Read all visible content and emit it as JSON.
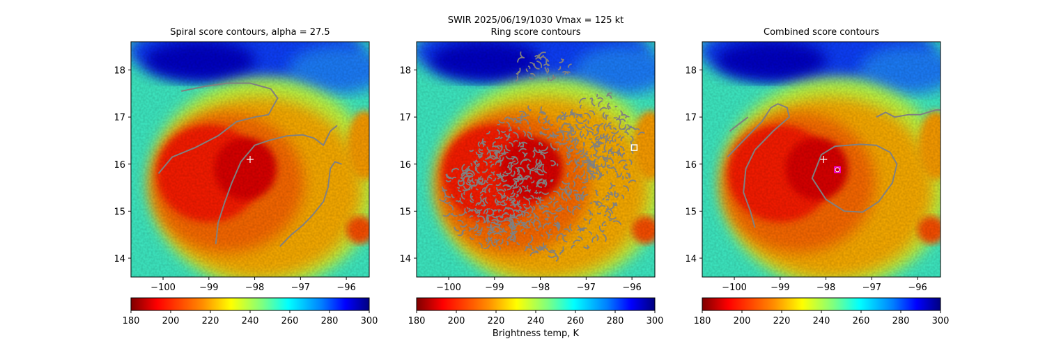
{
  "suptitle": "SWIR  2025/06/19/1030    Vmax = 125 kt",
  "colorbar_label": "Brightness temp, K",
  "colormap": [
    "#7f0000",
    "#ff0000",
    "#ff7f00",
    "#ffff00",
    "#7fff7f",
    "#00ffff",
    "#007fff",
    "#0000ff",
    "#00007f"
  ],
  "contour_color": "#808080",
  "chart_data": [
    {
      "type": "heatmap",
      "title": "Spiral score contours, alpha = 27.5",
      "xlim": [
        -100.7,
        -95.5
      ],
      "ylim": [
        13.6,
        18.6
      ],
      "xticks": [
        -100,
        -99,
        -98,
        -97,
        -96
      ],
      "yticks": [
        14,
        15,
        16,
        17,
        18
      ],
      "colorbar": {
        "min": 180,
        "max": 300,
        "ticks": [
          180,
          200,
          220,
          240,
          260,
          280,
          300
        ]
      },
      "markers": [
        {
          "shape": "plus",
          "color": "#ffffff",
          "x": -98.1,
          "y": 16.1
        }
      ],
      "contours": [
        [
          [
            -100.1,
            15.8
          ],
          [
            -99.8,
            16.15
          ],
          [
            -99.3,
            16.35
          ],
          [
            -98.8,
            16.6
          ],
          [
            -98.4,
            16.9
          ],
          [
            -98.0,
            17.0
          ],
          [
            -97.7,
            17.05
          ],
          [
            -97.5,
            17.4
          ],
          [
            -97.65,
            17.6
          ],
          [
            -98.1,
            17.72
          ],
          [
            -98.6,
            17.72
          ],
          [
            -99.1,
            17.65
          ],
          [
            -99.6,
            17.55
          ]
        ],
        [
          [
            -98.85,
            14.3
          ],
          [
            -98.8,
            14.75
          ],
          [
            -98.65,
            15.2
          ],
          [
            -98.5,
            15.6
          ],
          [
            -98.3,
            16.05
          ],
          [
            -98.0,
            16.4
          ],
          [
            -97.7,
            16.5
          ],
          [
            -97.3,
            16.6
          ],
          [
            -96.95,
            16.62
          ],
          [
            -96.7,
            16.55
          ],
          [
            -96.5,
            16.4
          ],
          [
            -96.35,
            16.7
          ],
          [
            -96.2,
            16.82
          ]
        ],
        [
          [
            -97.45,
            14.25
          ],
          [
            -97.2,
            14.5
          ],
          [
            -96.95,
            14.7
          ],
          [
            -96.75,
            14.9
          ],
          [
            -96.5,
            15.2
          ],
          [
            -96.4,
            15.5
          ],
          [
            -96.35,
            15.9
          ],
          [
            -96.25,
            16.05
          ],
          [
            -96.1,
            16.0
          ]
        ]
      ]
    },
    {
      "type": "heatmap",
      "title": "Ring score contours",
      "xlim": [
        -100.7,
        -95.5
      ],
      "ylim": [
        13.6,
        18.6
      ],
      "xticks": [
        -100,
        -99,
        -98,
        -97,
        -96
      ],
      "yticks": [
        14,
        15,
        16,
        17,
        18
      ],
      "colorbar": {
        "min": 180,
        "max": 300,
        "ticks": [
          180,
          200,
          220,
          240,
          260,
          280,
          300
        ]
      },
      "markers": [
        {
          "shape": "square",
          "color": "#ffffff",
          "x": -95.95,
          "y": 16.35
        }
      ],
      "contour_regions": [
        {
          "cx": -97.9,
          "cy": 15.6,
          "rx": 1.85,
          "ry": 1.6
        },
        {
          "cx": -98.9,
          "cy": 15.3,
          "rx": 1.2,
          "ry": 1.05
        },
        {
          "cx": -96.7,
          "cy": 16.6,
          "rx": 0.85,
          "ry": 0.9
        },
        {
          "cx": -98.0,
          "cy": 18.05,
          "rx": 0.7,
          "ry": 0.28
        }
      ]
    },
    {
      "type": "heatmap",
      "title": "Combined score contours",
      "xlim": [
        -100.7,
        -95.5
      ],
      "ylim": [
        13.6,
        18.6
      ],
      "xticks": [
        -100,
        -99,
        -98,
        -97,
        -96
      ],
      "yticks": [
        14,
        15,
        16,
        17,
        18
      ],
      "colorbar": {
        "min": 180,
        "max": 300,
        "ticks": [
          180,
          200,
          220,
          240,
          260,
          280,
          300
        ]
      },
      "markers": [
        {
          "shape": "plus",
          "color": "#ffffff",
          "x": -98.05,
          "y": 16.1
        },
        {
          "shape": "square",
          "color": "#ff00ff",
          "x": -97.75,
          "y": 15.88
        },
        {
          "shape": "circle",
          "color": "#ffffff",
          "x": -97.75,
          "y": 15.88
        }
      ],
      "contours": [
        [
          [
            -100.15,
            16.15
          ],
          [
            -99.7,
            16.6
          ],
          [
            -99.4,
            16.9
          ],
          [
            -99.2,
            17.2
          ],
          [
            -99.05,
            17.28
          ],
          [
            -98.85,
            17.2
          ],
          [
            -98.8,
            17.0
          ],
          [
            -99.15,
            16.7
          ],
          [
            -99.55,
            16.3
          ],
          [
            -99.75,
            15.9
          ],
          [
            -99.8,
            15.4
          ],
          [
            -99.65,
            15.0
          ],
          [
            -99.55,
            14.65
          ]
        ],
        [
          [
            -100.1,
            16.7
          ],
          [
            -99.9,
            16.85
          ],
          [
            -99.7,
            17.0
          ]
        ],
        [
          [
            -97.25,
            16.42
          ],
          [
            -96.9,
            16.4
          ],
          [
            -96.6,
            16.25
          ],
          [
            -96.45,
            16.0
          ],
          [
            -96.55,
            15.6
          ],
          [
            -96.85,
            15.2
          ],
          [
            -97.2,
            14.98
          ],
          [
            -97.6,
            15.0
          ],
          [
            -98.0,
            15.25
          ],
          [
            -98.3,
            15.7
          ],
          [
            -98.1,
            16.2
          ],
          [
            -97.8,
            16.38
          ],
          [
            -97.25,
            16.42
          ]
        ],
        [
          [
            -96.9,
            17.0
          ],
          [
            -96.7,
            17.1
          ],
          [
            -96.5,
            17.0
          ],
          [
            -96.2,
            17.05
          ],
          [
            -95.95,
            17.05
          ],
          [
            -95.6,
            17.15
          ],
          [
            -95.5,
            17.15
          ]
        ]
      ]
    }
  ]
}
